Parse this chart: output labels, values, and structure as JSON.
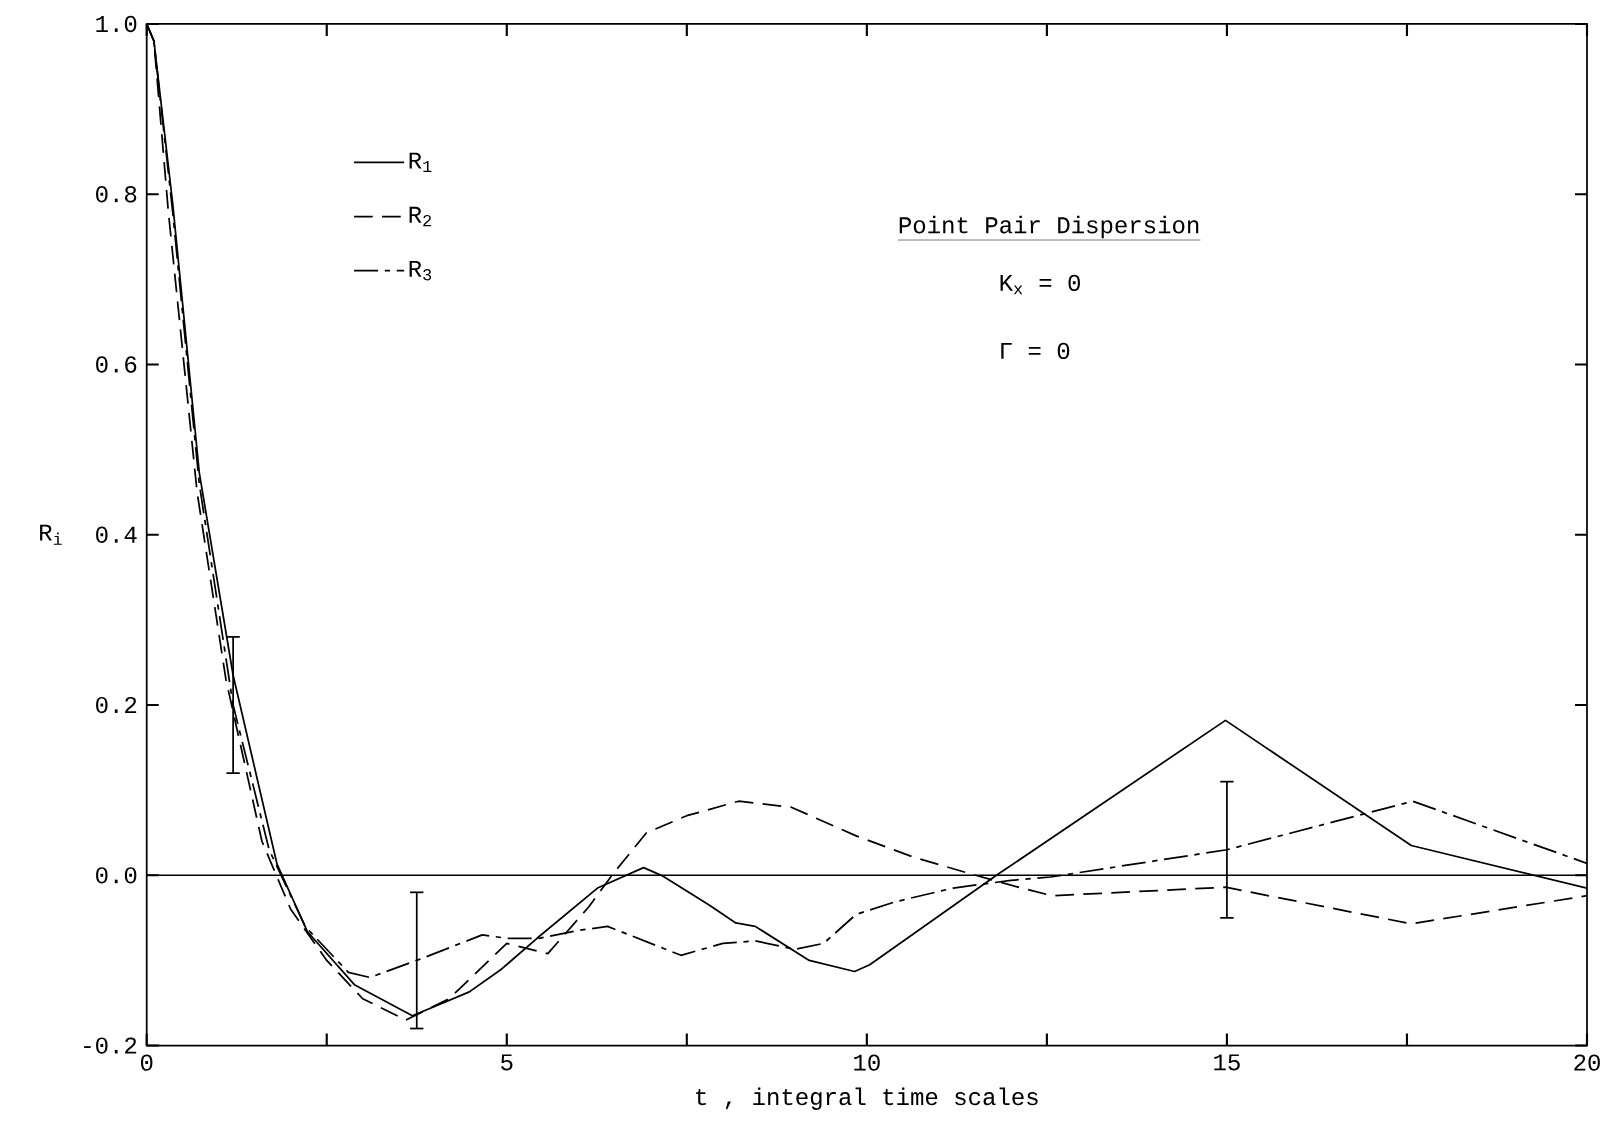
{
  "chart_data": {
    "type": "line",
    "xlabel": "t , integral time scales",
    "ylabel": "R$_{i}$",
    "xlim": [
      0,
      20
    ],
    "ylim": [
      -0.2,
      1.0
    ],
    "xticks": [
      0,
      {
        "value": 2.5,
        "label": null
      },
      5,
      {
        "value": 7.5,
        "label": null
      },
      10,
      {
        "value": 12.5,
        "label": null
      },
      15,
      {
        "value": 17.5,
        "label": null
      },
      20
    ],
    "yticks": [
      {
        "value": -0.2,
        "label": "-0.2"
      },
      {
        "value": 0,
        "label": "0.0"
      },
      {
        "value": 0.2,
        "label": "0.2"
      },
      {
        "value": 0.4,
        "label": "0.4"
      },
      {
        "value": 0.6,
        "label": "0.6"
      },
      {
        "value": 0.8,
        "label": "0.8"
      },
      {
        "value": 1.0,
        "label": "1.0"
      }
    ],
    "grid": false,
    "legend": "top left",
    "marker": "none",
    "series": [
      {
        "name": "R$_{1}$",
        "color": "#000000",
        "line_style": "solid",
        "x": [
          0,
          0.1,
          0.36,
          0.73,
          1.2,
          1.81,
          2.23,
          2.89,
          3.69,
          4.48,
          4.93,
          5.42,
          6.26,
          6.9,
          7.17,
          7.81,
          8.18,
          8.45,
          9.2,
          9.83,
          10.04,
          11.8,
          14.98,
          17.56,
          20
        ],
        "values": [
          1.0,
          0.98,
          0.79,
          0.473,
          0.235,
          0.013,
          -0.066,
          -0.129,
          -0.165,
          -0.137,
          -0.11,
          -0.074,
          -0.015,
          0.009,
          -0.001,
          -0.035,
          -0.056,
          -0.06,
          -0.1,
          -0.113,
          -0.105,
          0,
          0.182,
          0.035,
          -0.015
        ]
      },
      {
        "name": "R$_{2}$",
        "color": "#000000",
        "line_style": "dashed",
        "x": [
          0,
          0.1,
          0.3,
          0.7,
          1.1,
          1.6,
          2.0,
          2.5,
          3.0,
          3.6,
          4.2,
          5.0,
          5.57,
          6.14,
          6.46,
          6.94,
          7.5,
          8.22,
          8.95,
          9.86,
          10.66,
          11.51,
          12.15,
          12.57,
          14.98,
          17.56,
          20
        ],
        "values": [
          1.0,
          0.98,
          0.78,
          0.45,
          0.23,
          0.04,
          -0.04,
          -0.1,
          -0.145,
          -0.17,
          -0.145,
          -0.08,
          -0.092,
          -0.037,
          0,
          0.05,
          0.07,
          0.087,
          0.08,
          0.046,
          0.021,
          0,
          -0.015,
          -0.024,
          -0.014,
          -0.057,
          -0.024
        ]
      },
      {
        "name": "R$_{3}$",
        "color": "#000000",
        "line_style": "dashdot",
        "x": [
          0,
          0.1,
          0.36,
          0.73,
          1.2,
          1.7,
          2.2,
          2.8,
          3.1,
          3.75,
          4.66,
          5.0,
          5.45,
          5.98,
          6.4,
          7.42,
          8.0,
          8.45,
          9.0,
          9.4,
          9.85,
          10.4,
          11.2,
          12.0,
          12.55,
          15,
          17.58,
          20
        ],
        "values": [
          1.0,
          0.98,
          0.78,
          0.46,
          0.2,
          0.03,
          -0.06,
          -0.114,
          -0.12,
          -0.1,
          -0.07,
          -0.074,
          -0.074,
          -0.065,
          -0.06,
          -0.094,
          -0.08,
          -0.077,
          -0.087,
          -0.08,
          -0.046,
          -0.031,
          -0.015,
          -0.006,
          -0.002,
          0.03,
          0.087,
          0.014
        ],
        "errors": [
          null,
          null,
          null,
          null,
          0.08,
          null,
          null,
          null,
          null,
          0.08,
          null,
          null,
          null,
          null,
          null,
          null,
          null,
          null,
          null,
          null,
          null,
          null,
          null,
          null,
          null,
          0.08,
          null,
          null
        ]
      }
    ],
    "ref_lines": [
      {
        "axis": "y",
        "value": 0,
        "label": null
      }
    ],
    "annotations": [
      "Point Pair Dispersion",
      "K$_{x}$ = 0",
      "Γ = 0"
    ]
  }
}
